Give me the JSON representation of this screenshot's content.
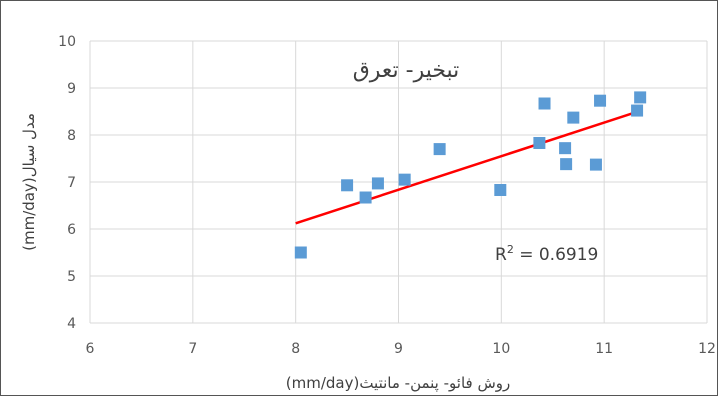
{
  "chart_data": {
    "type": "scatter",
    "title": "تبخیر- تعرق",
    "xlabel": "روش فائو- پنمن- مانتیث(mm/day)",
    "ylabel": "مدل سیال(mm/day)",
    "xlim": [
      6,
      12
    ],
    "ylim": [
      4,
      10
    ],
    "x_ticks": [
      "6",
      "7",
      "8",
      "9",
      "10",
      "11",
      "12"
    ],
    "y_ticks": [
      "4",
      "5",
      "6",
      "7",
      "8",
      "9",
      "10"
    ],
    "grid": true,
    "series": [
      {
        "marker": "square",
        "color": "#5b9bd5",
        "points": [
          [
            8.05,
            5.5
          ],
          [
            8.5,
            6.93
          ],
          [
            8.68,
            6.67
          ],
          [
            8.8,
            6.97
          ],
          [
            9.06,
            7.05
          ],
          [
            9.4,
            7.7
          ],
          [
            9.99,
            6.83
          ],
          [
            10.37,
            7.83
          ],
          [
            10.42,
            8.67
          ],
          [
            10.62,
            7.72
          ],
          [
            10.63,
            7.38
          ],
          [
            10.7,
            8.37
          ],
          [
            10.92,
            7.37
          ],
          [
            10.96,
            8.73
          ],
          [
            11.32,
            8.52
          ],
          [
            11.35,
            8.8
          ]
        ]
      }
    ],
    "trendline": {
      "type": "linear",
      "color": "#ff0000",
      "x": [
        8.0,
        11.33
      ],
      "y": [
        6.12,
        8.5
      ],
      "label_prefix": "R",
      "label_sup": "2",
      "label_value": " = 0.6919"
    }
  },
  "colors": {
    "grid": "#d9d9d9",
    "marker": "#5b9bd5",
    "trendline": "#ff0000"
  }
}
